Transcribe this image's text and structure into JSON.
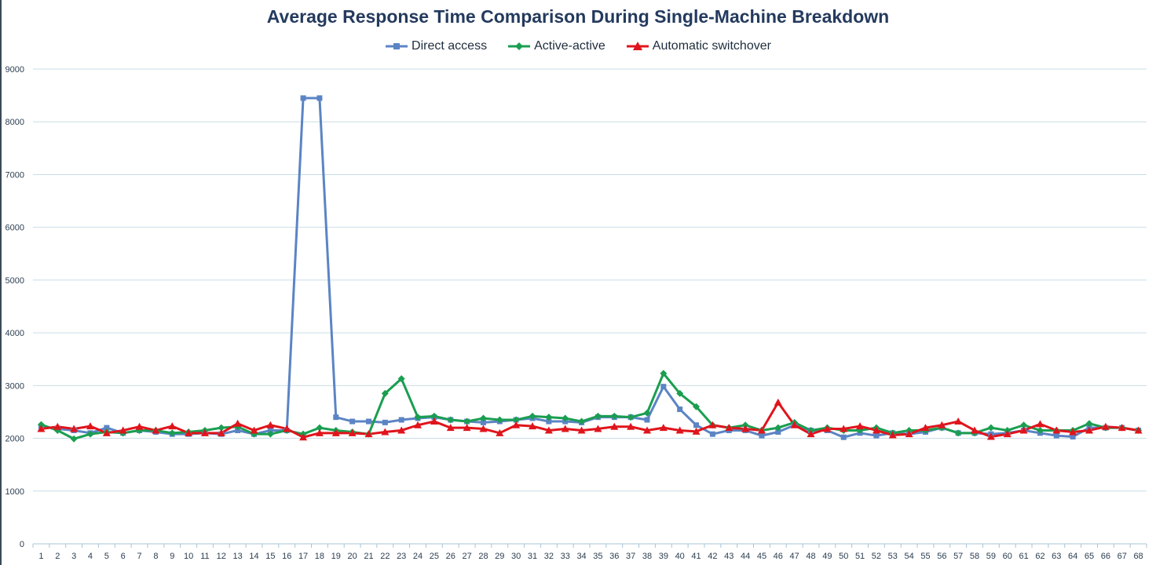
{
  "chart_data": {
    "type": "line",
    "title": "Average Response Time Comparison During Single-Machine Breakdown",
    "xlabel": "",
    "ylabel": "",
    "ylim": [
      0,
      9000
    ],
    "y_ticks": [
      0,
      1000,
      2000,
      3000,
      4000,
      5000,
      6000,
      7000,
      8000,
      9000
    ],
    "grid": "horizontal",
    "legend_position": "top-center",
    "categories": [
      "1",
      "2",
      "3",
      "4",
      "5",
      "6",
      "7",
      "8",
      "9",
      "10",
      "11",
      "12",
      "13",
      "14",
      "15",
      "16",
      "17",
      "18",
      "19",
      "20",
      "21",
      "22",
      "23",
      "24",
      "25",
      "26",
      "27",
      "28",
      "29",
      "30",
      "31",
      "32",
      "33",
      "34",
      "35",
      "36",
      "37",
      "38",
      "39",
      "40",
      "41",
      "42",
      "43",
      "44",
      "45",
      "46",
      "47",
      "48",
      "49",
      "50",
      "51",
      "52",
      "53",
      "54",
      "55",
      "56",
      "57",
      "58",
      "59",
      "60",
      "61",
      "62",
      "63",
      "64",
      "65",
      "66",
      "67",
      "68"
    ],
    "series": [
      {
        "name": "Direct access",
        "color": "#5b84c4",
        "marker": "square",
        "values": [
          2230,
          2180,
          2150,
          2100,
          2200,
          2100,
          2150,
          2120,
          2080,
          2080,
          2100,
          2080,
          2150,
          2080,
          2150,
          2150,
          8450,
          8450,
          2400,
          2320,
          2320,
          2300,
          2350,
          2380,
          2400,
          2350,
          2320,
          2300,
          2320,
          2350,
          2380,
          2320,
          2320,
          2300,
          2400,
          2400,
          2400,
          2350,
          2980,
          2550,
          2250,
          2080,
          2150,
          2150,
          2050,
          2120,
          2250,
          2150,
          2150,
          2020,
          2100,
          2050,
          2100,
          2080,
          2120,
          2200,
          2100,
          2100,
          2080,
          2100,
          2150,
          2100,
          2050,
          2030,
          2200,
          2200,
          2200,
          2150
        ]
      },
      {
        "name": "Active-active",
        "color": "#1a9e50",
        "marker": "diamond",
        "values": [
          2260,
          2150,
          1990,
          2080,
          2120,
          2100,
          2150,
          2150,
          2100,
          2120,
          2150,
          2200,
          2220,
          2080,
          2080,
          2150,
          2080,
          2200,
          2150,
          2120,
          2080,
          2850,
          3130,
          2400,
          2420,
          2350,
          2320,
          2380,
          2350,
          2350,
          2420,
          2400,
          2380,
          2320,
          2420,
          2420,
          2400,
          2480,
          3230,
          2850,
          2600,
          2250,
          2200,
          2250,
          2150,
          2200,
          2300,
          2150,
          2200,
          2150,
          2150,
          2200,
          2100,
          2150,
          2150,
          2200,
          2100,
          2100,
          2200,
          2150,
          2250,
          2150,
          2150,
          2150,
          2280,
          2200,
          2200,
          2150
        ]
      },
      {
        "name": "Automatic switchover",
        "color": "#e0141c",
        "marker": "triangle",
        "values": [
          2180,
          2220,
          2180,
          2230,
          2100,
          2150,
          2220,
          2150,
          2230,
          2100,
          2100,
          2100,
          2280,
          2150,
          2250,
          2180,
          2020,
          2100,
          2100,
          2100,
          2080,
          2120,
          2150,
          2250,
          2320,
          2200,
          2200,
          2180,
          2100,
          2250,
          2230,
          2150,
          2180,
          2150,
          2180,
          2220,
          2220,
          2150,
          2200,
          2150,
          2130,
          2250,
          2200,
          2180,
          2150,
          2680,
          2250,
          2080,
          2180,
          2180,
          2230,
          2150,
          2060,
          2080,
          2200,
          2250,
          2320,
          2150,
          2030,
          2080,
          2150,
          2270,
          2150,
          2120,
          2150,
          2220,
          2200,
          2150
        ]
      }
    ]
  }
}
